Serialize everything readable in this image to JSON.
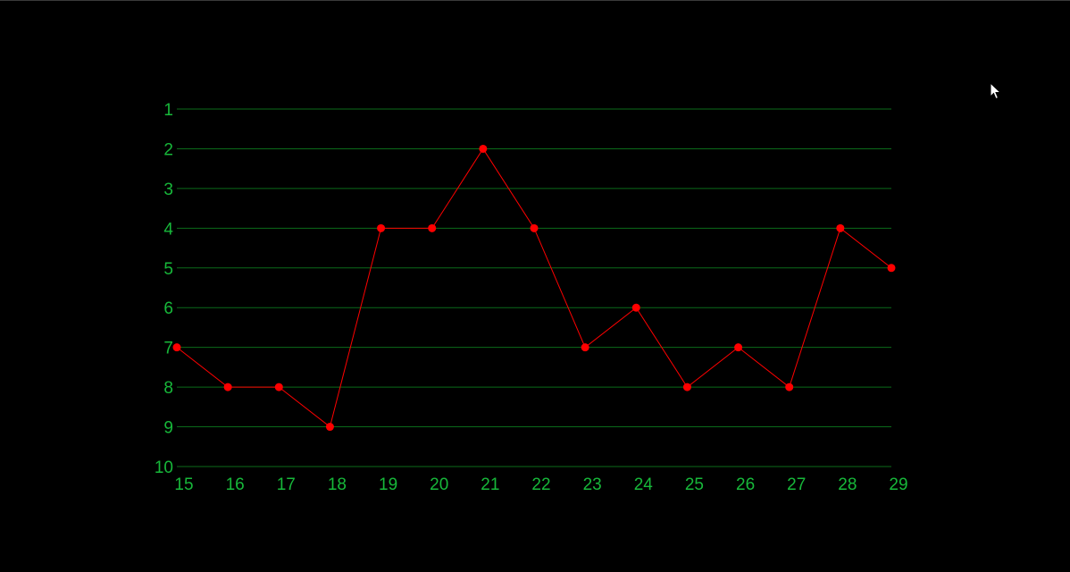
{
  "colors": {
    "background": "#000000",
    "grid": "#0b6b1a",
    "tick_label": "#17b83a",
    "series": "#ff0000"
  },
  "cursor_icon": "mouse-pointer-icon",
  "chart_data": {
    "type": "line",
    "title": "",
    "xlabel": "",
    "ylabel": "",
    "x": [
      15,
      16,
      17,
      18,
      19,
      20,
      21,
      22,
      23,
      24,
      25,
      26,
      27,
      28,
      29
    ],
    "y_ticks": [
      1,
      2,
      3,
      4,
      5,
      6,
      7,
      8,
      9,
      10
    ],
    "ylim": [
      1,
      10
    ],
    "y_inverted": true,
    "xlim": [
      15,
      29
    ],
    "grid": "horizontal",
    "legend": "none",
    "series": [
      {
        "values": [
          7,
          8,
          8,
          9,
          4,
          4,
          2,
          4,
          7,
          6,
          8,
          7,
          8,
          4,
          5
        ]
      }
    ]
  }
}
